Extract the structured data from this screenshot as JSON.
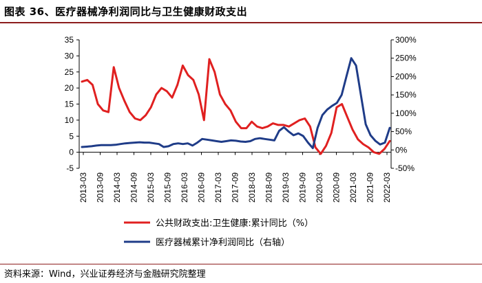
{
  "header": {
    "title": "图表 36、医疗器械净利润同比与卫生健康财政支出"
  },
  "footer": {
    "source": "资料来源：Wind，兴业证券经济与金融研究院整理"
  },
  "chart_data": {
    "type": "line",
    "title": "图表 36、医疗器械净利润同比与卫生健康财政支出",
    "x_labels": [
      "2013-03",
      "2013-09",
      "2014-03",
      "2014-09",
      "2015-03",
      "2015-09",
      "2016-03",
      "2016-09",
      "2017-03",
      "2017-09",
      "2018-03",
      "2018-09",
      "2019-03",
      "2019-09",
      "2020-03",
      "2020-09",
      "2021-03",
      "2021-09",
      "2022-03"
    ],
    "y_left": {
      "min": -5,
      "max": 35,
      "ticks": [
        "35",
        "30",
        "25",
        "20",
        "15",
        "10",
        "5",
        "0",
        "-5"
      ]
    },
    "y_right": {
      "min": -50,
      "max": 300,
      "ticks": [
        "300%",
        "250%",
        "200%",
        "150%",
        "100%",
        "50%",
        "0%",
        "-50%"
      ]
    },
    "series": [
      {
        "name": "公共财政支出:卫生健康:累计同比（%）",
        "axis": "left",
        "color": "#e02020",
        "values": [
          22,
          22.5,
          21,
          15,
          13,
          12.5,
          26.5,
          20,
          16,
          12.5,
          10.5,
          10,
          11.5,
          14,
          18,
          20,
          19,
          17,
          21,
          27,
          24,
          22.5,
          18,
          10,
          29,
          25,
          18,
          15,
          13,
          9.5,
          7.5,
          7.5,
          9.5,
          8,
          7.5,
          8,
          9,
          8.5,
          8.5,
          8,
          9,
          10,
          10.5,
          8,
          1.5,
          -0.5,
          2,
          6,
          14,
          15,
          11,
          7,
          4,
          2.5,
          1.5,
          0,
          -0.5,
          1,
          3.5
        ]
      },
      {
        "name": "医疗器械累计净利润同比（右轴）",
        "axis": "right",
        "color": "#1f3c88",
        "values": [
          8,
          9,
          10,
          12,
          13,
          13,
          13,
          14,
          16,
          18,
          19,
          20,
          21,
          20,
          20,
          18,
          16,
          8,
          10,
          16,
          18,
          16,
          18,
          12,
          20,
          30,
          28,
          26,
          24,
          22,
          24,
          26,
          25,
          23,
          22,
          24,
          30,
          32,
          30,
          28,
          26,
          52,
          62,
          50,
          40,
          45,
          38,
          20,
          5,
          60,
          95,
          110,
          120,
          128,
          150,
          200,
          250,
          230,
          150,
          70,
          40,
          25,
          15,
          20,
          60
        ]
      }
    ],
    "legend": "bottom"
  }
}
